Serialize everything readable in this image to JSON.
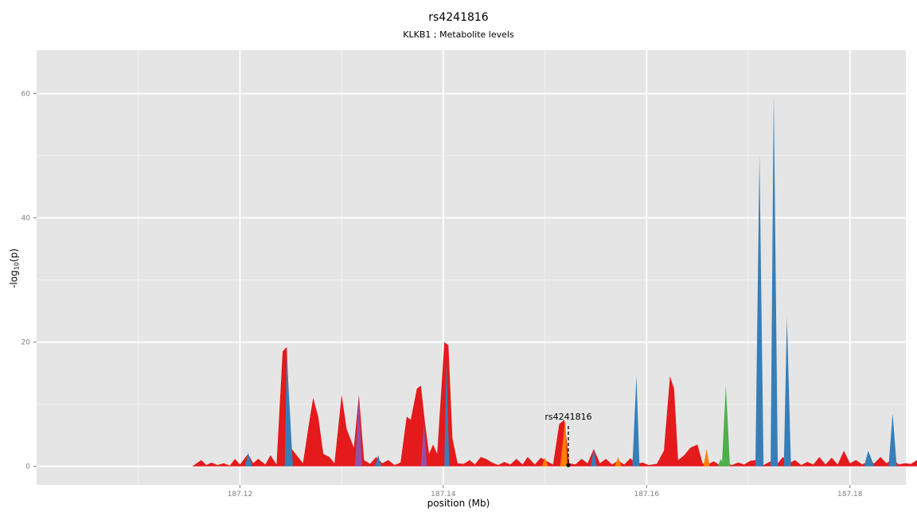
{
  "chart_data": {
    "type": "area",
    "title": "rs4241816",
    "subtitle": "KLKB1 ; Metabolite levels",
    "xlabel": "position (Mb)",
    "ylabel": "-log10(p)",
    "ylabel_parts": {
      "main": "-log",
      "sub": "10",
      "rest": "(p)"
    },
    "xlim": [
      187.1,
      187.1855
    ],
    "ylim": [
      -3,
      67
    ],
    "xticks": [
      187.12,
      187.14,
      187.16,
      187.18
    ],
    "xtick_labels": [
      "187.12",
      "187.14",
      "187.16",
      "187.18"
    ],
    "yticks": [
      0,
      20,
      40,
      60
    ],
    "ytick_labels": [
      "0",
      "20",
      "40",
      "60"
    ],
    "grid": true,
    "panel_background": "#e5e5e5",
    "colors": {
      "red": "#e41a1c",
      "blue": "#377eb8",
      "orange": "#ff7f00",
      "green": "#4daf4a",
      "purple": "#984ea3"
    },
    "annotation": {
      "label": "rs4241816",
      "x": 187.1523,
      "y": 0.2
    },
    "series": [
      {
        "color": "red",
        "points": [
          [
            187.1153,
            0
          ],
          [
            187.1162,
            1
          ],
          [
            187.1167,
            0.2
          ],
          [
            187.1172,
            0.6
          ],
          [
            187.1178,
            0.2
          ],
          [
            187.1184,
            0.5
          ],
          [
            187.119,
            0.1
          ],
          [
            187.1195,
            1.2
          ],
          [
            187.12,
            0.3
          ],
          [
            187.1208,
            2
          ],
          [
            187.1213,
            0.5
          ],
          [
            187.1218,
            1.2
          ],
          [
            187.1225,
            0.3
          ],
          [
            187.123,
            1.8
          ],
          [
            187.1236,
            0.3
          ],
          [
            187.1242,
            18.5
          ],
          [
            187.1246,
            19.2
          ],
          [
            187.125,
            3
          ],
          [
            187.1262,
            0.5
          ],
          [
            187.1268,
            7
          ],
          [
            187.1272,
            11
          ],
          [
            187.1277,
            8
          ],
          [
            187.1282,
            2
          ],
          [
            187.1288,
            1.5
          ],
          [
            187.1293,
            0.5
          ],
          [
            187.13,
            11.5
          ],
          [
            187.1305,
            6
          ],
          [
            187.1312,
            3
          ],
          [
            187.1317,
            11.5
          ],
          [
            187.1322,
            1
          ],
          [
            187.1328,
            0.4
          ],
          [
            187.1334,
            1.5
          ],
          [
            187.134,
            0.5
          ],
          [
            187.1346,
            1
          ],
          [
            187.1352,
            0.2
          ],
          [
            187.1358,
            0.6
          ],
          [
            187.1364,
            8
          ],
          [
            187.1368,
            7.5
          ],
          [
            187.1374,
            12.5
          ],
          [
            187.1378,
            13
          ],
          [
            187.1382,
            7
          ],
          [
            187.1386,
            2
          ],
          [
            187.139,
            3.5
          ],
          [
            187.1394,
            2
          ],
          [
            187.1401,
            20
          ],
          [
            187.1405,
            19.5
          ],
          [
            187.1409,
            4.5
          ],
          [
            187.1414,
            0.5
          ],
          [
            187.142,
            0.4
          ],
          [
            187.1426,
            1
          ],
          [
            187.1431,
            0.3
          ],
          [
            187.1437,
            1.5
          ],
          [
            187.1442,
            1.2
          ],
          [
            187.1448,
            0.6
          ],
          [
            187.1454,
            0.2
          ],
          [
            187.146,
            0.7
          ],
          [
            187.1466,
            0.3
          ],
          [
            187.1472,
            1.2
          ],
          [
            187.1478,
            0.3
          ],
          [
            187.1483,
            1.5
          ],
          [
            187.149,
            0.3
          ],
          [
            187.1496,
            1.4
          ],
          [
            187.1502,
            0.8
          ],
          [
            187.1508,
            0.3
          ],
          [
            187.1514,
            6.8
          ],
          [
            187.1519,
            7.5
          ],
          [
            187.1524,
            0.5
          ],
          [
            187.153,
            0.3
          ],
          [
            187.1536,
            1.2
          ],
          [
            187.1542,
            0.5
          ],
          [
            187.1548,
            2.8
          ],
          [
            187.1554,
            0.5
          ],
          [
            187.156,
            1.2
          ],
          [
            187.1566,
            0.3
          ],
          [
            187.1572,
            0.9
          ],
          [
            187.1578,
            0.3
          ],
          [
            187.1584,
            1.3
          ],
          [
            187.159,
            0.4
          ],
          [
            187.1596,
            0.6
          ],
          [
            187.1602,
            0.2
          ],
          [
            187.161,
            0.4
          ],
          [
            187.1617,
            2.5
          ],
          [
            187.1623,
            14.5
          ],
          [
            187.1627,
            12.5
          ],
          [
            187.1631,
            1
          ],
          [
            187.1637,
            1.8
          ],
          [
            187.1643,
            3
          ],
          [
            187.165,
            3.5
          ],
          [
            187.1655,
            0.5
          ],
          [
            187.166,
            0.3
          ],
          [
            187.1666,
            0.8
          ],
          [
            187.1672,
            0.2
          ],
          [
            187.1678,
            0.5
          ],
          [
            187.1684,
            0.2
          ],
          [
            187.169,
            0.6
          ],
          [
            187.1696,
            0.3
          ],
          [
            187.1702,
            0.9
          ],
          [
            187.1708,
            1
          ],
          [
            187.1715,
            0.2
          ],
          [
            187.1722,
            0.8
          ],
          [
            187.1728,
            0.3
          ],
          [
            187.1734,
            1.5
          ],
          [
            187.174,
            0.5
          ],
          [
            187.1746,
            1
          ],
          [
            187.1752,
            0.2
          ],
          [
            187.1758,
            0.7
          ],
          [
            187.1764,
            0.3
          ],
          [
            187.177,
            1.5
          ],
          [
            187.1776,
            0.3
          ],
          [
            187.1782,
            1.4
          ],
          [
            187.1788,
            0.3
          ],
          [
            187.1794,
            2.5
          ],
          [
            187.18,
            0.5
          ],
          [
            187.1806,
            1
          ],
          [
            187.1812,
            0.3
          ],
          [
            187.1818,
            0.8
          ],
          [
            187.1824,
            0.5
          ],
          [
            187.183,
            1.5
          ],
          [
            187.1836,
            0.5
          ],
          [
            187.1842,
            1.2
          ],
          [
            187.1848,
            0.3
          ],
          [
            187.1854,
            0.5
          ],
          [
            187.186,
            0.4
          ],
          [
            187.1866,
            1
          ],
          [
            187.1872,
            0.3
          ],
          [
            187.1878,
            1.5
          ],
          [
            187.1884,
            1.4
          ],
          [
            187.189,
            0.5
          ],
          [
            187.19,
            2
          ]
        ]
      }
    ]
  }
}
